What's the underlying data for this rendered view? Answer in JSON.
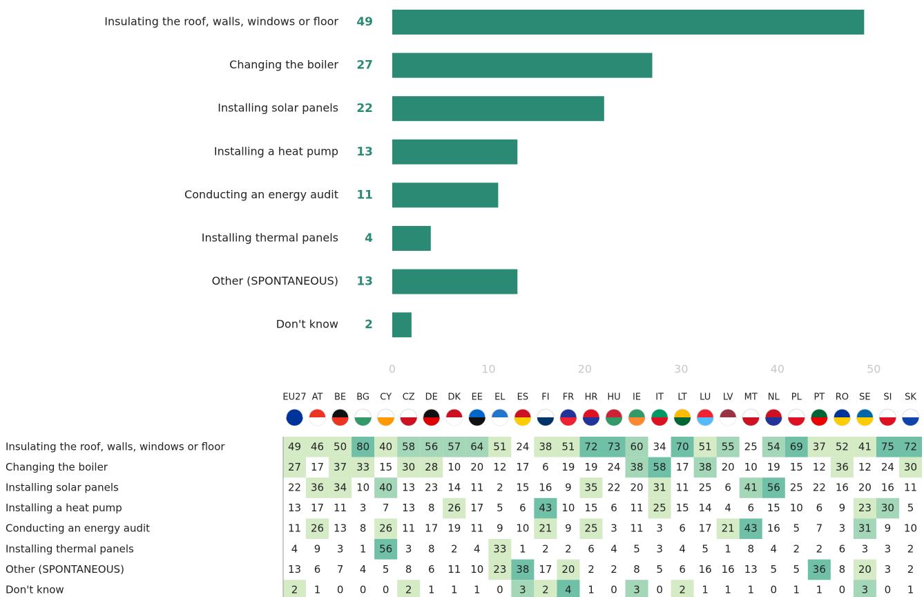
{
  "chart_data": {
    "type": "bar",
    "orientation": "horizontal",
    "categories": [
      "Insulating the roof, walls, windows or floor",
      "Changing the boiler",
      "Installing solar panels",
      "Installing a heat pump",
      "Conducting an energy audit",
      "Installing thermal panels",
      "Other (SPONTANEOUS)",
      "Don't know"
    ],
    "values": [
      49,
      27,
      22,
      13,
      11,
      4,
      13,
      2
    ],
    "color": "#2a8a74",
    "xlim": [
      0,
      55
    ],
    "xticks": [
      0,
      10,
      20,
      30,
      40,
      50
    ],
    "grid": false
  },
  "table": {
    "columns": [
      "EU27",
      "AT",
      "BE",
      "BG",
      "CY",
      "CZ",
      "DE",
      "DK",
      "EE",
      "EL",
      "ES",
      "FI",
      "FR",
      "HR",
      "HU",
      "IE",
      "IT",
      "LT",
      "LU",
      "LV",
      "MT",
      "NL",
      "PL",
      "PT",
      "RO",
      "SE",
      "SI",
      "SK"
    ],
    "rows": [
      {
        "label": "Insulating the roof, walls, windows or floor",
        "values": [
          49,
          46,
          50,
          80,
          40,
          58,
          56,
          57,
          64,
          51,
          24,
          38,
          51,
          72,
          73,
          60,
          34,
          70,
          51,
          55,
          25,
          54,
          69,
          37,
          52,
          41,
          75,
          72
        ]
      },
      {
        "label": "Changing the boiler",
        "values": [
          27,
          17,
          37,
          33,
          15,
          30,
          28,
          10,
          20,
          12,
          17,
          6,
          19,
          19,
          24,
          38,
          58,
          17,
          38,
          20,
          10,
          19,
          15,
          12,
          36,
          12,
          24,
          30
        ]
      },
      {
        "label": "Installing solar panels",
        "values": [
          22,
          36,
          34,
          10,
          40,
          13,
          23,
          14,
          11,
          2,
          15,
          16,
          9,
          35,
          22,
          20,
          31,
          11,
          25,
          6,
          41,
          56,
          25,
          22,
          16,
          20,
          16,
          11
        ]
      },
      {
        "label": "Installing a heat pump",
        "values": [
          13,
          17,
          11,
          3,
          7,
          13,
          8,
          26,
          17,
          5,
          6,
          43,
          10,
          15,
          6,
          11,
          25,
          15,
          14,
          4,
          6,
          15,
          10,
          6,
          9,
          23,
          30,
          5
        ]
      },
      {
        "label": "Conducting an energy audit",
        "values": [
          11,
          26,
          13,
          8,
          26,
          11,
          17,
          19,
          11,
          9,
          10,
          21,
          9,
          25,
          3,
          11,
          3,
          6,
          17,
          21,
          43,
          16,
          5,
          7,
          3,
          31,
          9,
          10
        ]
      },
      {
        "label": "Installing thermal panels",
        "values": [
          4,
          9,
          3,
          1,
          56,
          3,
          8,
          2,
          4,
          33,
          1,
          2,
          2,
          6,
          4,
          5,
          3,
          4,
          5,
          1,
          8,
          4,
          2,
          2,
          6,
          3,
          3,
          2
        ]
      },
      {
        "label": "Other (SPONTANEOUS)",
        "values": [
          13,
          6,
          7,
          4,
          5,
          8,
          6,
          11,
          10,
          23,
          38,
          17,
          20,
          2,
          2,
          8,
          5,
          6,
          16,
          16,
          13,
          5,
          5,
          36,
          8,
          20,
          3,
          2
        ]
      },
      {
        "label": "Don't know",
        "values": [
          2,
          1,
          0,
          0,
          0,
          2,
          1,
          1,
          1,
          0,
          3,
          2,
          4,
          1,
          0,
          3,
          0,
          2,
          1,
          1,
          1,
          0,
          1,
          1,
          0,
          3,
          0,
          1
        ]
      }
    ]
  }
}
